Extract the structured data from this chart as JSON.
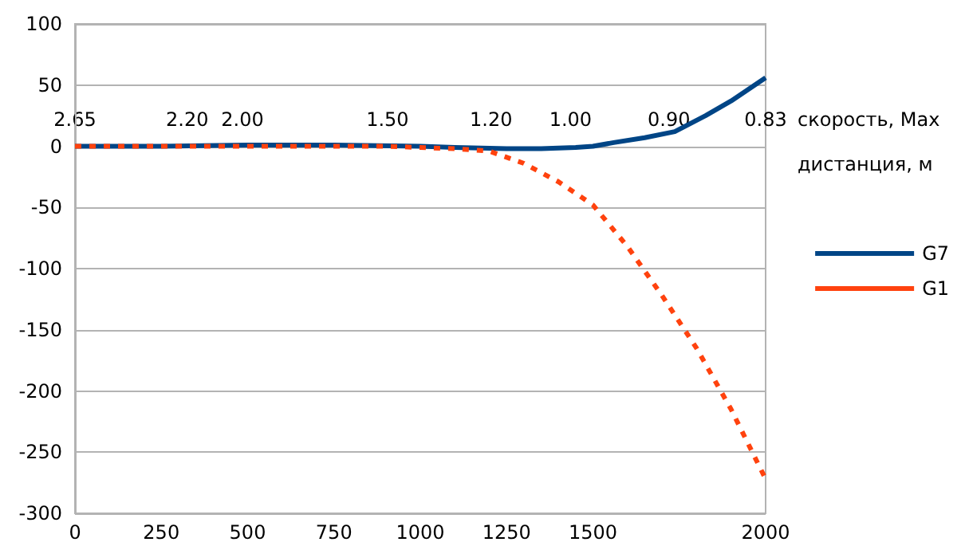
{
  "chart_data": {
    "type": "line",
    "xlabel": "дистанция, м",
    "annotations": [
      "2.65",
      "2.20",
      "2.00",
      "1.50",
      "1.20",
      "1.00",
      "0.90",
      "0.83",
      "скорость, Мах"
    ],
    "xlim": [
      0,
      2000
    ],
    "xticks": [
      0,
      250,
      500,
      750,
      1000,
      1250,
      1500,
      2000
    ],
    "ylim": [
      -300,
      100
    ],
    "yticks": [
      -300,
      -250,
      -200,
      -150,
      -100,
      -50,
      0,
      50,
      100
    ],
    "grid": "y",
    "legend": "right",
    "marker": "none",
    "series": [
      {
        "name": "G7",
        "color": "#004586",
        "line_style": "solid",
        "x": [
          0,
          250,
          500,
          750,
          1000,
          1100,
          1250,
          1350,
          1450,
          1500,
          1560,
          1650,
          1737,
          1826,
          1900,
          2000
        ],
        "values": [
          0,
          0,
          1,
          1,
          0,
          -1,
          -2,
          -2,
          -1,
          0,
          3,
          7,
          12,
          25,
          37,
          56
        ]
      },
      {
        "name": "G1",
        "color": "#ff420e",
        "line_style": "dashed",
        "x": [
          0,
          500,
          750,
          900,
          1000,
          1100,
          1200,
          1300,
          1400,
          1500,
          1600,
          1700,
          1800,
          1900,
          2000
        ],
        "values": [
          0,
          0,
          0,
          0,
          -1,
          -2,
          -4,
          -14,
          -29,
          -48,
          -82,
          -122,
          -165,
          -215,
          -272
        ]
      }
    ]
  }
}
